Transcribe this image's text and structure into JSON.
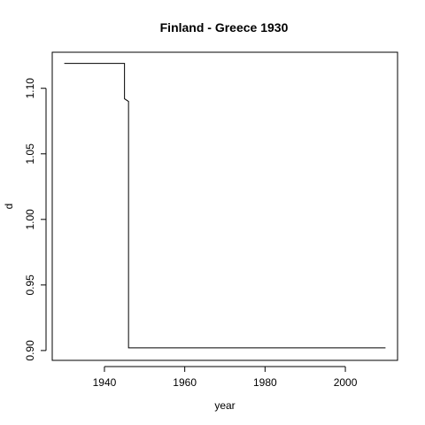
{
  "chart_data": {
    "type": "line",
    "title": "Finland - Greece 1930",
    "xlabel": "year",
    "ylabel": "d",
    "xlim": [
      1927,
      2013
    ],
    "ylim": [
      0.8925,
      1.1275
    ],
    "xticks": [
      1940,
      1960,
      1980,
      2000
    ],
    "yticks": [
      0.9,
      0.95,
      1.0,
      1.05,
      1.1
    ],
    "ytick_labels": [
      "0.90",
      "0.95",
      "1.00",
      "1.05",
      "1.10"
    ],
    "grid": false,
    "series": [
      {
        "x": [
          1930,
          1945,
          1945,
          1946,
          1946,
          2010
        ],
        "y": [
          1.119,
          1.119,
          1.092,
          1.09,
          0.902,
          0.902
        ]
      }
    ]
  }
}
